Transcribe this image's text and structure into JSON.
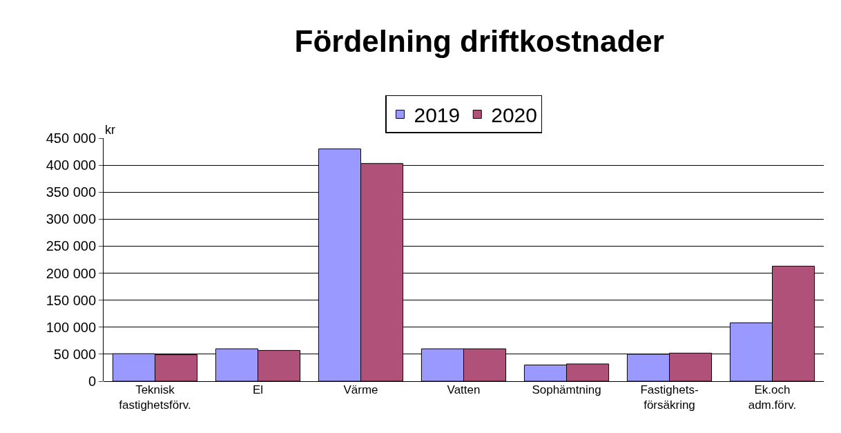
{
  "chart_data": {
    "type": "bar",
    "title": "Fördelning driftkostnader",
    "ylabel": "kr",
    "categories": [
      "Teknisk\nfastighetsförv.",
      "El",
      "Värme",
      "Vatten",
      "Sophämtning",
      "Fastighets-\nförsäkring",
      "Ek.och\nadm.förv."
    ],
    "series": [
      {
        "name": "2019",
        "color": "#9999ff",
        "values": [
          51000,
          60000,
          430000,
          60000,
          30000,
          50000,
          108000
        ]
      },
      {
        "name": "2020",
        "color": "#b0517a",
        "values": [
          49000,
          57000,
          403000,
          60000,
          32000,
          52000,
          213000
        ]
      }
    ],
    "ylim": [
      0,
      450000
    ],
    "yticks": [
      {
        "value": 0,
        "label": "0"
      },
      {
        "value": 50000,
        "label": "50 000"
      },
      {
        "value": 100000,
        "label": "100 000"
      },
      {
        "value": 150000,
        "label": "150 000"
      },
      {
        "value": 200000,
        "label": "200 000"
      },
      {
        "value": 250000,
        "label": "250 000"
      },
      {
        "value": 300000,
        "label": "300 000"
      },
      {
        "value": 350000,
        "label": "350 000"
      },
      {
        "value": 400000,
        "label": "400 000"
      },
      {
        "value": 450000,
        "label": "450 000"
      }
    ],
    "grid": "y",
    "legend": "top"
  }
}
